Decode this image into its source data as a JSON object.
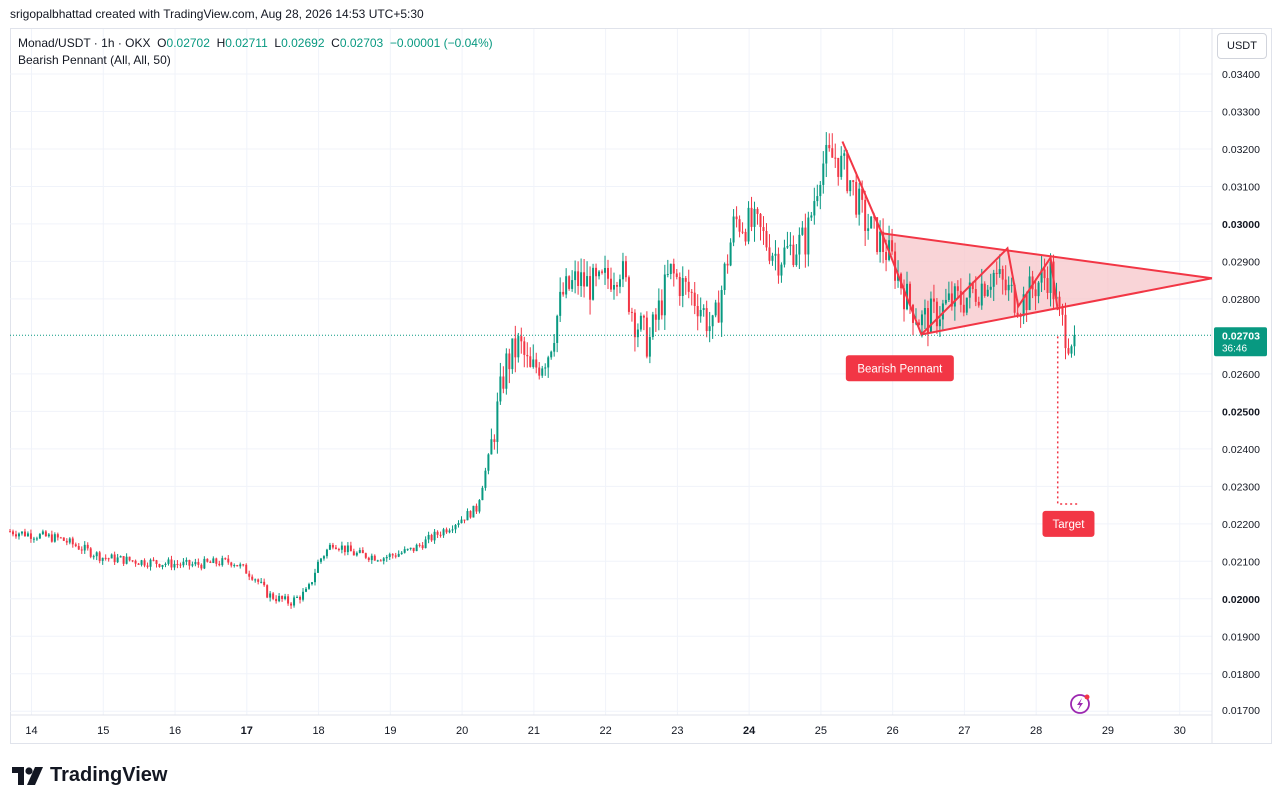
{
  "header": {
    "attribution": "srigopalbhattad created with TradingView.com, Aug 28, 2026 14:53 UTC+5:30"
  },
  "legend": {
    "symbol": "Monad/USDT · 1h · OKX",
    "o_label": "O",
    "o_val": "0.02702",
    "h_label": "H",
    "h_val": "0.02711",
    "l_label": "L",
    "l_val": "0.02692",
    "c_label": "C",
    "c_val": "0.02703",
    "change": "−0.00001 (−0.04%)",
    "indicator": "Bearish Pennant (All, All, 50)"
  },
  "currency_button": "USDT",
  "price_tag": {
    "price": "0.02703",
    "countdown": "36:46"
  },
  "annotations": {
    "pattern_label": "Bearish Pennant",
    "target_label": "Target"
  },
  "footer": {
    "brand": "TradingView"
  },
  "colors": {
    "up": "#089981",
    "down": "#f23645",
    "pattern_fill": "#f7c5c9",
    "grid": "#f0f3fa"
  },
  "chart_data": {
    "type": "candlestick",
    "x_ticks": [
      "14",
      "15",
      "16",
      "17",
      "18",
      "19",
      "20",
      "21",
      "22",
      "23",
      "24",
      "25",
      "26",
      "27",
      "28",
      "29",
      "30"
    ],
    "bold_x_ticks": [
      "17",
      "24"
    ],
    "y_ticks": [
      "0.03400",
      "0.03300",
      "0.03200",
      "0.03100",
      "0.03000",
      "0.02900",
      "0.02800",
      "0.02600",
      "0.02500",
      "0.02400",
      "0.02300",
      "0.02200",
      "0.02100",
      "0.02000",
      "0.01900",
      "0.01800",
      "0.01700"
    ],
    "bold_y_ticks": [
      "0.03000",
      "0.02500",
      "0.02000"
    ],
    "ylim": [
      0.0169,
      0.0352
    ],
    "xlim_days": [
      13.7,
      30.45
    ],
    "last_price": 0.02703,
    "price_path": [
      [
        13.7,
        0.0218
      ],
      [
        14.4,
        0.0216
      ],
      [
        15.0,
        0.0211
      ],
      [
        15.5,
        0.021
      ],
      [
        16.2,
        0.0209
      ],
      [
        16.8,
        0.021
      ],
      [
        17.1,
        0.0206
      ],
      [
        17.3,
        0.0201
      ],
      [
        17.6,
        0.0199
      ],
      [
        17.85,
        0.0202
      ],
      [
        18.0,
        0.021
      ],
      [
        18.2,
        0.0215
      ],
      [
        18.5,
        0.0212
      ],
      [
        18.9,
        0.0211
      ],
      [
        19.3,
        0.0213
      ],
      [
        19.8,
        0.0219
      ],
      [
        20.2,
        0.0224
      ],
      [
        20.4,
        0.024
      ],
      [
        20.6,
        0.0262
      ],
      [
        20.8,
        0.0268
      ],
      [
        20.95,
        0.026
      ],
      [
        21.2,
        0.0266
      ],
      [
        21.4,
        0.0281
      ],
      [
        21.6,
        0.0285
      ],
      [
        21.9,
        0.0283
      ],
      [
        22.2,
        0.0289
      ],
      [
        22.4,
        0.0275
      ],
      [
        22.6,
        0.0268
      ],
      [
        22.9,
        0.0287
      ],
      [
        23.1,
        0.0283
      ],
      [
        23.3,
        0.0279
      ],
      [
        23.5,
        0.0271
      ],
      [
        23.8,
        0.0301
      ],
      [
        24.1,
        0.0299
      ],
      [
        24.4,
        0.0291
      ],
      [
        24.8,
        0.0296
      ],
      [
        25.0,
        0.0316
      ],
      [
        25.2,
        0.0318
      ],
      [
        25.4,
        0.0312
      ],
      [
        25.6,
        0.0301
      ],
      [
        25.8,
        0.0296
      ],
      [
        26.0,
        0.029
      ],
      [
        26.2,
        0.028
      ],
      [
        26.4,
        0.0274
      ],
      [
        26.6,
        0.0276
      ],
      [
        26.8,
        0.0279
      ],
      [
        27.0,
        0.028
      ],
      [
        27.2,
        0.0283
      ],
      [
        27.4,
        0.0287
      ],
      [
        27.6,
        0.0282
      ],
      [
        27.8,
        0.0279
      ],
      [
        28.0,
        0.0284
      ],
      [
        28.2,
        0.0287
      ],
      [
        28.3,
        0.0276
      ],
      [
        28.45,
        0.027
      ],
      [
        28.55,
        0.02703
      ]
    ],
    "pattern": {
      "label": "Bearish Pennant",
      "flagpole": [
        [
          25.3,
          0.0322
        ],
        [
          25.85,
          0.02975
        ]
      ],
      "upper_line": [
        [
          25.85,
          0.02975
        ],
        [
          30.45,
          0.02855
        ]
      ],
      "lower_line": [
        [
          26.4,
          0.02705
        ],
        [
          30.45,
          0.02855
        ]
      ],
      "zigzag": [
        [
          25.85,
          0.02975
        ],
        [
          26.4,
          0.02705
        ],
        [
          27.6,
          0.02935
        ],
        [
          27.75,
          0.0278
        ],
        [
          28.2,
          0.0291
        ],
        [
          28.3,
          0.0277
        ]
      ],
      "target_drop": [
        [
          28.3,
          0.027
        ],
        [
          28.3,
          0.02253
        ],
        [
          28.6,
          0.02253
        ]
      ],
      "target_label": "Target"
    }
  }
}
